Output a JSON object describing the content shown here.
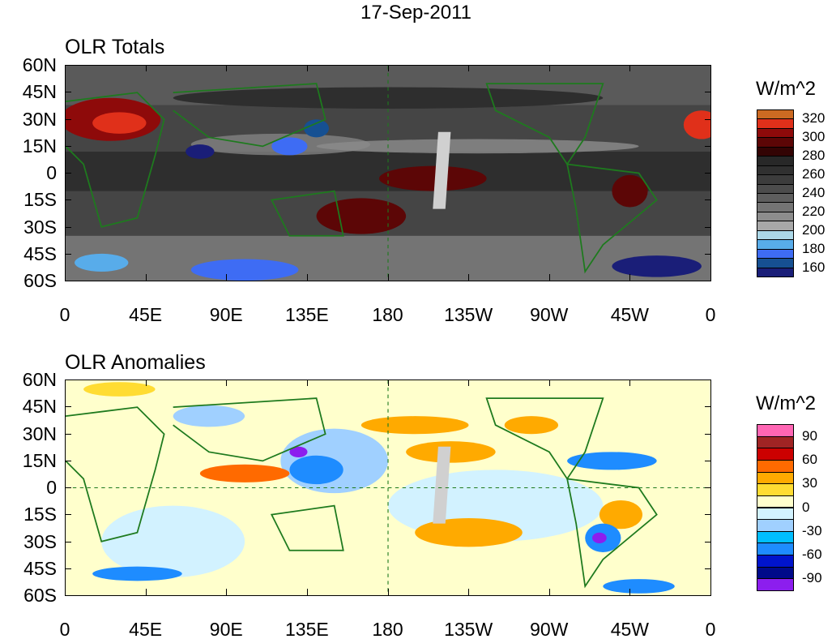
{
  "title": "17-Sep-2011",
  "panels": [
    {
      "title": "OLR Totals",
      "units": "W/m^2",
      "legend_labels": [
        "320",
        "300",
        "280",
        "260",
        "240",
        "220",
        "200",
        "180",
        "160"
      ],
      "legend_colors": [
        "#cc6a22",
        "#e0301a",
        "#8e0a0a",
        "#5c0606",
        "#330404",
        "#282828",
        "#303030",
        "#3c3c3c",
        "#4c4c4c",
        "#5e5e5e",
        "#747474",
        "#8c8c8c",
        "#a8a8a8",
        "#acd8e8",
        "#58acea",
        "#3e6cf4",
        "#165092",
        "#1a1e78"
      ]
    },
    {
      "title": "OLR Anomalies",
      "units": "W/m^2",
      "legend_labels": [
        "90",
        "60",
        "30",
        "0",
        "-30",
        "-60",
        "-90"
      ],
      "legend_colors": [
        "#ff66b4",
        "#a02424",
        "#cc0000",
        "#ff6a00",
        "#ffaa00",
        "#ffdc32",
        "#ffffcc",
        "#d2f2ff",
        "#a0d0ff",
        "#00beff",
        "#1e8cff",
        "#0014cc",
        "#000a8a",
        "#8c1eee"
      ]
    }
  ],
  "y_ticks": [
    "60N",
    "45N",
    "30N",
    "15N",
    "0",
    "15S",
    "30S",
    "45S",
    "60S"
  ],
  "x_ticks": [
    "0",
    "45E",
    "90E",
    "135E",
    "180",
    "135W",
    "90W",
    "45W",
    "0"
  ]
}
